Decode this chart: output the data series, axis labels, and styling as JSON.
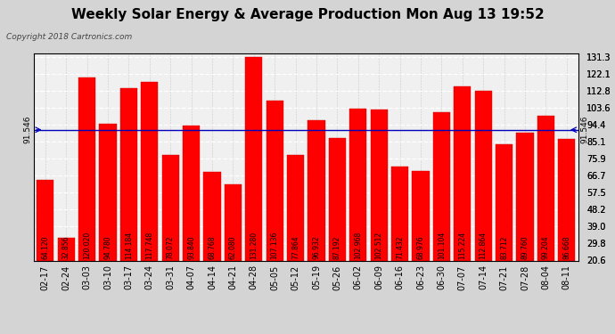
{
  "title": "Weekly Solar Energy & Average Production Mon Aug 13 19:52",
  "copyright": "Copyright 2018 Cartronics.com",
  "categories": [
    "02-17",
    "02-24",
    "03-03",
    "03-10",
    "03-17",
    "03-24",
    "03-31",
    "04-07",
    "04-14",
    "04-21",
    "04-28",
    "05-05",
    "05-12",
    "05-19",
    "05-26",
    "06-02",
    "06-09",
    "06-16",
    "06-23",
    "06-30",
    "07-07",
    "07-14",
    "07-21",
    "07-28",
    "08-04",
    "08-11"
  ],
  "values": [
    64.12,
    32.856,
    120.02,
    94.78,
    114.184,
    117.748,
    78.072,
    93.84,
    68.768,
    62.08,
    131.28,
    107.136,
    77.864,
    96.932,
    87.192,
    102.968,
    102.512,
    71.432,
    68.976,
    101.104,
    115.224,
    112.864,
    83.712,
    89.76,
    99.204,
    86.668
  ],
  "average": 91.546,
  "bar_color": "#ff0000",
  "avg_line_color": "#0000bb",
  "bg_color": "#d4d4d4",
  "plot_bg_color": "#f0f0f0",
  "grid_color_y": "#ffffff",
  "grid_color_x": "#aaaaaa",
  "yticks": [
    20.6,
    29.8,
    39.0,
    48.2,
    57.5,
    66.7,
    75.9,
    85.1,
    94.4,
    103.6,
    112.8,
    122.1,
    131.3
  ],
  "ymin": 20.6,
  "ymax": 133.0,
  "title_fontsize": 11,
  "tick_fontsize": 7,
  "bar_label_fontsize": 5.5,
  "copyright_fontsize": 6.5,
  "legend_avg_color": "#0000bb",
  "legend_weekly_color": "#cc0000",
  "avg_label": "91.546"
}
